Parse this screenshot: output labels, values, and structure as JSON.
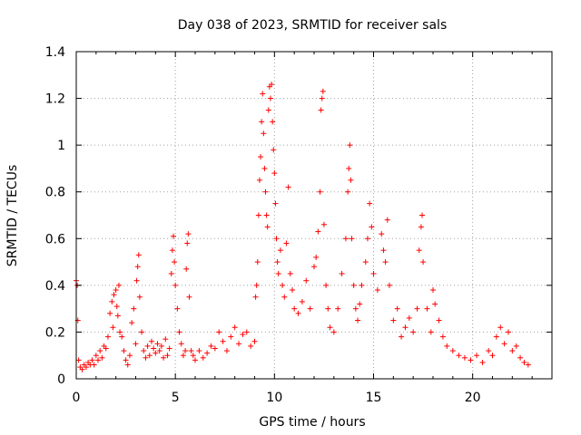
{
  "chart_data": {
    "type": "scatter",
    "title": "Day 038 of 2023, SRMTID for receiver sals",
    "xlabel": "GPS time / hours",
    "ylabel": "SRMTID / TECUs",
    "xlim": [
      0,
      24
    ],
    "ylim": [
      0,
      1.4
    ],
    "xticks": [
      0,
      5,
      10,
      15,
      20
    ],
    "yticks": [
      0,
      0.2,
      0.4,
      0.6,
      0.8,
      1,
      1.2,
      1.4
    ],
    "xtick_labels": [
      "0",
      "5",
      "10",
      "15",
      "20"
    ],
    "ytick_labels": [
      "0",
      "0.2",
      "0.4",
      "0.6",
      "0.8",
      "1",
      "1.2",
      "1.4"
    ],
    "grid": true,
    "marker": "+",
    "color": "#ff0000",
    "series": [
      {
        "name": "SRMTID",
        "points": [
          [
            0.0,
            0.42
          ],
          [
            0.05,
            0.4
          ],
          [
            0.08,
            0.25
          ],
          [
            0.12,
            0.08
          ],
          [
            0.2,
            0.05
          ],
          [
            0.3,
            0.04
          ],
          [
            0.4,
            0.06
          ],
          [
            0.5,
            0.05
          ],
          [
            0.6,
            0.07
          ],
          [
            0.7,
            0.06
          ],
          [
            0.8,
            0.08
          ],
          [
            0.9,
            0.06
          ],
          [
            1.0,
            0.1
          ],
          [
            1.1,
            0.08
          ],
          [
            1.2,
            0.12
          ],
          [
            1.3,
            0.09
          ],
          [
            1.4,
            0.14
          ],
          [
            1.5,
            0.13
          ],
          [
            1.6,
            0.18
          ],
          [
            1.7,
            0.28
          ],
          [
            1.8,
            0.33
          ],
          [
            1.85,
            0.22
          ],
          [
            1.9,
            0.36
          ],
          [
            2.0,
            0.38
          ],
          [
            2.05,
            0.31
          ],
          [
            2.1,
            0.27
          ],
          [
            2.15,
            0.4
          ],
          [
            2.2,
            0.2
          ],
          [
            2.3,
            0.18
          ],
          [
            2.4,
            0.12
          ],
          [
            2.5,
            0.08
          ],
          [
            2.6,
            0.06
          ],
          [
            2.7,
            0.1
          ],
          [
            2.8,
            0.24
          ],
          [
            2.9,
            0.3
          ],
          [
            3.0,
            0.15
          ],
          [
            3.05,
            0.42
          ],
          [
            3.1,
            0.48
          ],
          [
            3.15,
            0.53
          ],
          [
            3.2,
            0.35
          ],
          [
            3.3,
            0.2
          ],
          [
            3.4,
            0.12
          ],
          [
            3.5,
            0.09
          ],
          [
            3.6,
            0.14
          ],
          [
            3.7,
            0.1
          ],
          [
            3.8,
            0.16
          ],
          [
            3.9,
            0.13
          ],
          [
            4.0,
            0.11
          ],
          [
            4.1,
            0.15
          ],
          [
            4.2,
            0.12
          ],
          [
            4.3,
            0.14
          ],
          [
            4.4,
            0.09
          ],
          [
            4.5,
            0.17
          ],
          [
            4.6,
            0.1
          ],
          [
            4.7,
            0.13
          ],
          [
            4.8,
            0.45
          ],
          [
            4.85,
            0.55
          ],
          [
            4.9,
            0.61
          ],
          [
            4.95,
            0.5
          ],
          [
            5.0,
            0.4
          ],
          [
            5.1,
            0.3
          ],
          [
            5.2,
            0.2
          ],
          [
            5.3,
            0.15
          ],
          [
            5.4,
            0.1
          ],
          [
            5.5,
            0.12
          ],
          [
            5.55,
            0.47
          ],
          [
            5.6,
            0.58
          ],
          [
            5.65,
            0.62
          ],
          [
            5.7,
            0.35
          ],
          [
            5.8,
            0.12
          ],
          [
            5.9,
            0.1
          ],
          [
            6.0,
            0.08
          ],
          [
            6.2,
            0.12
          ],
          [
            6.4,
            0.09
          ],
          [
            6.6,
            0.11
          ],
          [
            6.8,
            0.14
          ],
          [
            7.0,
            0.13
          ],
          [
            7.2,
            0.2
          ],
          [
            7.4,
            0.16
          ],
          [
            7.6,
            0.12
          ],
          [
            7.8,
            0.18
          ],
          [
            8.0,
            0.22
          ],
          [
            8.2,
            0.15
          ],
          [
            8.4,
            0.19
          ],
          [
            8.6,
            0.2
          ],
          [
            8.8,
            0.14
          ],
          [
            9.0,
            0.16
          ],
          [
            9.05,
            0.35
          ],
          [
            9.1,
            0.4
          ],
          [
            9.15,
            0.5
          ],
          [
            9.2,
            0.7
          ],
          [
            9.25,
            0.85
          ],
          [
            9.3,
            0.95
          ],
          [
            9.35,
            1.1
          ],
          [
            9.4,
            1.22
          ],
          [
            9.45,
            1.05
          ],
          [
            9.5,
            0.9
          ],
          [
            9.55,
            0.8
          ],
          [
            9.6,
            0.7
          ],
          [
            9.65,
            0.65
          ],
          [
            9.7,
            1.15
          ],
          [
            9.75,
            1.25
          ],
          [
            9.8,
            1.2
          ],
          [
            9.85,
            1.26
          ],
          [
            9.9,
            1.1
          ],
          [
            9.95,
            0.98
          ],
          [
            10.0,
            0.88
          ],
          [
            10.05,
            0.75
          ],
          [
            10.1,
            0.6
          ],
          [
            10.15,
            0.5
          ],
          [
            10.2,
            0.45
          ],
          [
            10.3,
            0.55
          ],
          [
            10.4,
            0.4
          ],
          [
            10.5,
            0.35
          ],
          [
            10.6,
            0.58
          ],
          [
            10.7,
            0.82
          ],
          [
            10.8,
            0.45
          ],
          [
            10.9,
            0.38
          ],
          [
            11.0,
            0.3
          ],
          [
            11.2,
            0.28
          ],
          [
            11.4,
            0.33
          ],
          [
            11.6,
            0.42
          ],
          [
            11.8,
            0.3
          ],
          [
            12.0,
            0.48
          ],
          [
            12.1,
            0.52
          ],
          [
            12.2,
            0.63
          ],
          [
            12.3,
            0.8
          ],
          [
            12.35,
            1.15
          ],
          [
            12.4,
            1.2
          ],
          [
            12.45,
            1.23
          ],
          [
            12.5,
            0.66
          ],
          [
            12.6,
            0.4
          ],
          [
            12.7,
            0.3
          ],
          [
            12.8,
            0.22
          ],
          [
            13.0,
            0.2
          ],
          [
            13.2,
            0.3
          ],
          [
            13.4,
            0.45
          ],
          [
            13.6,
            0.6
          ],
          [
            13.7,
            0.8
          ],
          [
            13.75,
            0.9
          ],
          [
            13.8,
            1.0
          ],
          [
            13.85,
            0.85
          ],
          [
            13.9,
            0.6
          ],
          [
            14.0,
            0.4
          ],
          [
            14.1,
            0.3
          ],
          [
            14.2,
            0.25
          ],
          [
            14.3,
            0.32
          ],
          [
            14.4,
            0.4
          ],
          [
            14.6,
            0.5
          ],
          [
            14.7,
            0.6
          ],
          [
            14.8,
            0.75
          ],
          [
            14.9,
            0.65
          ],
          [
            15.0,
            0.45
          ],
          [
            15.2,
            0.38
          ],
          [
            15.4,
            0.62
          ],
          [
            15.5,
            0.55
          ],
          [
            15.6,
            0.5
          ],
          [
            15.7,
            0.68
          ],
          [
            15.8,
            0.4
          ],
          [
            16.0,
            0.25
          ],
          [
            16.2,
            0.3
          ],
          [
            16.4,
            0.18
          ],
          [
            16.6,
            0.22
          ],
          [
            16.8,
            0.26
          ],
          [
            17.0,
            0.2
          ],
          [
            17.2,
            0.3
          ],
          [
            17.3,
            0.55
          ],
          [
            17.4,
            0.65
          ],
          [
            17.45,
            0.7
          ],
          [
            17.5,
            0.5
          ],
          [
            17.7,
            0.3
          ],
          [
            17.9,
            0.2
          ],
          [
            18.0,
            0.38
          ],
          [
            18.1,
            0.32
          ],
          [
            18.3,
            0.25
          ],
          [
            18.5,
            0.18
          ],
          [
            18.7,
            0.14
          ],
          [
            19.0,
            0.12
          ],
          [
            19.3,
            0.1
          ],
          [
            19.6,
            0.09
          ],
          [
            19.9,
            0.08
          ],
          [
            20.2,
            0.1
          ],
          [
            20.5,
            0.07
          ],
          [
            20.8,
            0.12
          ],
          [
            21.0,
            0.1
          ],
          [
            21.2,
            0.18
          ],
          [
            21.4,
            0.22
          ],
          [
            21.6,
            0.15
          ],
          [
            21.8,
            0.2
          ],
          [
            22.0,
            0.12
          ],
          [
            22.2,
            0.14
          ],
          [
            22.4,
            0.09
          ],
          [
            22.6,
            0.07
          ],
          [
            22.8,
            0.06
          ]
        ]
      }
    ]
  }
}
